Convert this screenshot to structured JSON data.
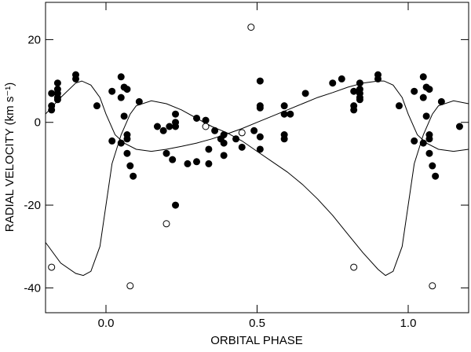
{
  "chart_data": {
    "type": "scatter",
    "xlabel": "ORBITAL PHASE",
    "ylabel": "RADIAL VELOCITY (km s⁻¹)",
    "xlim": [
      -0.2,
      1.2
    ],
    "ylim": [
      -46,
      29
    ],
    "xticks": [
      {
        "value": 0,
        "label": "0.0"
      },
      0.5,
      {
        "value": 1,
        "label": "1.0"
      }
    ],
    "yticks": [
      -40,
      -20,
      0,
      20
    ],
    "color": "#000000",
    "series": [
      {
        "kind": "line",
        "x": [
          -0.2,
          -0.15,
          -0.1,
          -0.075,
          -0.05,
          -0.02,
          0.0,
          0.02,
          0.05,
          0.08,
          0.1,
          0.15,
          0.2,
          0.25,
          0.3,
          0.35,
          0.4,
          0.45,
          0.5,
          0.55,
          0.6,
          0.65,
          0.7,
          0.75,
          0.8,
          0.85,
          0.9,
          0.925,
          0.95,
          0.98,
          1.0,
          1.02,
          1.05,
          1.08,
          1.1,
          1.15,
          1.2
        ],
        "values": [
          -29,
          -34,
          -36.5,
          -37,
          -36,
          -30,
          -20,
          -10,
          -3,
          2,
          4,
          5.2,
          4.5,
          3,
          1,
          -1,
          -2.5,
          -4.5,
          -7,
          -9.5,
          -12,
          -15,
          -18.5,
          -22.5,
          -27,
          -31.5,
          -35.5,
          -37,
          -36,
          -30,
          -20,
          -10,
          -3,
          2,
          4,
          5.2,
          4.5
        ]
      },
      {
        "kind": "line",
        "x": [
          -0.2,
          -0.15,
          -0.1,
          -0.08,
          -0.05,
          -0.02,
          0.0,
          0.03,
          0.06,
          0.1,
          0.15,
          0.2,
          0.25,
          0.3,
          0.35,
          0.4,
          0.45,
          0.5,
          0.55,
          0.6,
          0.65,
          0.7,
          0.75,
          0.8,
          0.85,
          0.9,
          0.92,
          0.95,
          0.98,
          1.0,
          1.03,
          1.06,
          1.1,
          1.15,
          1.2
        ],
        "values": [
          2,
          6,
          9.5,
          10,
          9,
          6,
          2,
          -3,
          -5,
          -6.5,
          -7,
          -6.5,
          -5.8,
          -5,
          -4,
          -2.8,
          -1.5,
          0,
          1.5,
          3,
          4.5,
          6,
          7.2,
          8.5,
          9.5,
          10,
          10,
          9,
          6,
          2,
          -3,
          -5,
          -6.5,
          -7,
          -6.5
        ]
      },
      {
        "kind": "filled",
        "x": [
          -0.18,
          -0.18,
          -0.18,
          -0.16,
          -0.16,
          -0.16,
          -0.16,
          -0.16,
          -0.1,
          -0.1,
          -0.03,
          0.02,
          0.05,
          0.05,
          0.06,
          0.07,
          0.06,
          0.02,
          0.05,
          0.07,
          0.07,
          0.07,
          0.08,
          0.09,
          0.11,
          0.17,
          0.19,
          0.2,
          0.21,
          0.22,
          0.23,
          0.23,
          0.23,
          0.23,
          0.27,
          0.3,
          0.3,
          0.33,
          0.34,
          0.34,
          0.36,
          0.38,
          0.39,
          0.39,
          0.39,
          0.43,
          0.45,
          0.49,
          0.51,
          0.51,
          0.51,
          0.51,
          0.51,
          0.59,
          0.59,
          0.59,
          0.59,
          0.61,
          0.66,
          0.75,
          0.78,
          0.82,
          0.82,
          0.82,
          0.84,
          0.84,
          0.84,
          0.84,
          0.84,
          0.9,
          0.9,
          0.97,
          1.02,
          1.02,
          1.05,
          1.05,
          1.06,
          1.07,
          1.06,
          1.05,
          1.07,
          1.07,
          1.07,
          1.08,
          1.09,
          1.11,
          1.17
        ],
        "values": [
          4,
          3,
          7,
          9.5,
          8,
          7,
          6,
          5.5,
          11.5,
          10.5,
          4,
          7.5,
          6,
          11,
          8.5,
          8,
          1.5,
          -4.5,
          -5,
          -3,
          -4,
          -7.5,
          -10.5,
          -13,
          5,
          -1,
          -2,
          -7.5,
          -1,
          -9,
          2,
          0,
          -1,
          -20,
          -10,
          1,
          -9.5,
          0.5,
          -6.5,
          -10,
          -2,
          -4,
          -3,
          -5,
          -8,
          -4,
          -6,
          -2,
          10,
          4,
          3.5,
          -3.5,
          -6.5,
          4,
          2,
          -3,
          -4,
          2,
          7,
          9.5,
          10.5,
          7.5,
          4,
          3,
          9.5,
          8,
          7,
          6,
          5.5,
          11.5,
          10.5,
          4,
          7.5,
          -4.5,
          6,
          11,
          8.5,
          8,
          1.5,
          -5,
          -3,
          -4,
          -7.5,
          -10.5,
          -13,
          5,
          -1
        ]
      },
      {
        "kind": "open",
        "x": [
          -0.18,
          0.08,
          0.2,
          0.33,
          0.45,
          0.48,
          0.82,
          1.08
        ],
        "values": [
          -35,
          -39.5,
          -24.5,
          -1,
          -2.5,
          23,
          -35,
          -39.5
        ]
      }
    ]
  }
}
